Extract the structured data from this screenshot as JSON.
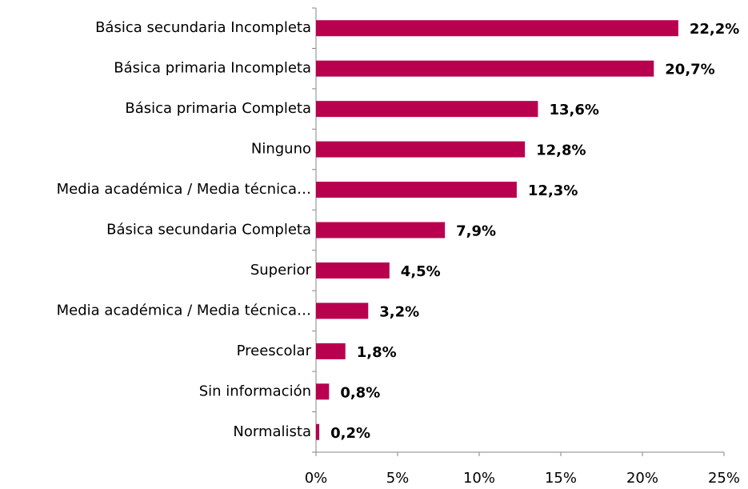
{
  "chart_data": {
    "type": "bar",
    "orientation": "horizontal",
    "categories": [
      "Básica secundaria Incompleta",
      "Básica primaria Incompleta",
      "Básica primaria Completa",
      "Ninguno",
      "Media académica / Media técnica…",
      "Básica secundaria Completa",
      "Superior",
      "Media académica / Media técnica…",
      "Preescolar",
      "Sin información",
      "Normalista"
    ],
    "values": [
      22.2,
      20.7,
      13.6,
      12.8,
      12.3,
      7.9,
      4.5,
      3.2,
      1.8,
      0.8,
      0.2
    ],
    "value_labels": [
      "22,2%",
      "20,7%",
      "13,6%",
      "12,8%",
      "12,3%",
      "7,9%",
      "4,5%",
      "3,2%",
      "1,8%",
      "0,8%",
      "0,2%"
    ],
    "color": "#b8004f",
    "xlim": [
      0,
      25
    ],
    "xticks": [
      {
        "value": 0,
        "label": "0%"
      },
      {
        "value": 5,
        "label": "5%"
      },
      {
        "value": 10,
        "label": "10%"
      },
      {
        "value": 15,
        "label": "15%"
      },
      {
        "value": 20,
        "label": "20%"
      },
      {
        "value": 25,
        "label": "25%"
      }
    ],
    "grid": false
  }
}
